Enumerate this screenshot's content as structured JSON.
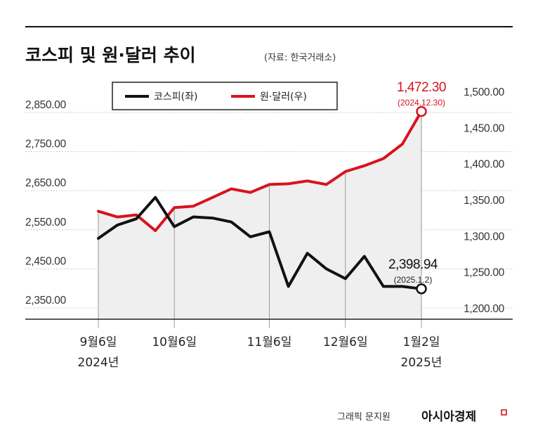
{
  "title": "코스피 및 원·달러 추이",
  "source": "(자료: 한국거래소)",
  "credit": "그래픽 문지원",
  "brand": "아시아경제",
  "colors": {
    "kospi": "#111111",
    "usdkrw": "#d7141f",
    "area": "#efefef",
    "accent": "#d7141f"
  },
  "chart_data": {
    "type": "line",
    "title": "코스피 및 원·달러 추이",
    "legend_position": "top-center",
    "x_tick_labels": [
      {
        "line1": "9월6일",
        "line2": "2024년",
        "index": 0
      },
      {
        "line1": "10월6일",
        "line2": "",
        "index": 4
      },
      {
        "line1": "11월6일",
        "line2": "",
        "index": 9
      },
      {
        "line1": "12월6일",
        "line2": "",
        "index": 13
      },
      {
        "line1": "1월2일",
        "line2": "2025년",
        "index": 17
      }
    ],
    "left_axis": {
      "ylim": [
        2350,
        2900
      ],
      "ticks": [
        "2,850.00",
        "2,750.00",
        "2,650.00",
        "2,550.00",
        "2,450.00",
        "2,350.00"
      ],
      "tick_values": [
        2850,
        2750,
        2650,
        2550,
        2450,
        2350
      ]
    },
    "right_axis": {
      "ylim": [
        1200,
        1500
      ],
      "ticks": [
        "1,500.00",
        "1,450.00",
        "1,400.00",
        "1,350.00",
        "1,300.00",
        "1,250.00",
        "1,200.00"
      ],
      "tick_values": [
        1500,
        1450,
        1400,
        1350,
        1300,
        1250,
        1200
      ]
    },
    "series": [
      {
        "name": "코스피(좌)",
        "axis": "left",
        "values": [
          2528,
          2562,
          2578,
          2633,
          2558,
          2583,
          2580,
          2570,
          2532,
          2545,
          2405,
          2490,
          2450,
          2425,
          2482,
          2405,
          2405,
          2398.94
        ]
      },
      {
        "name": "원·달러(우)",
        "axis": "right",
        "values": [
          1334,
          1326,
          1329,
          1307,
          1339,
          1341,
          1353,
          1365,
          1360,
          1371,
          1372,
          1376,
          1371,
          1389,
          1397,
          1407,
          1427,
          1472.3
        ]
      }
    ],
    "annotations": [
      {
        "series": "원·달러(우)",
        "label": "1,472.30",
        "sublabel": "(2024.12.30)"
      },
      {
        "series": "코스피(좌)",
        "label": "2,398.94",
        "sublabel": "(2025.1.2)"
      }
    ]
  }
}
